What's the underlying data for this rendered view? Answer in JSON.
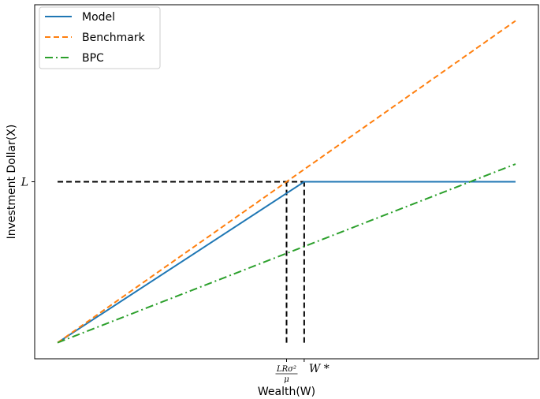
{
  "chart_data": {
    "type": "line",
    "title": "",
    "xlabel": "Wealth(W)",
    "ylabel": "Investment Dollar(X)",
    "xlim": [
      -0.05,
      1.05
    ],
    "ylim": [
      -0.05,
      1.05
    ],
    "grid": false,
    "legend_position": "top-left",
    "x_ticks": [
      {
        "value": 0.5,
        "label_num": "LRσ²",
        "label_den": "μ"
      },
      {
        "value": 0.5385,
        "label": "W *"
      }
    ],
    "y_ticks": [
      {
        "value": 0.5,
        "label": "L"
      }
    ],
    "series": [
      {
        "name": "Model",
        "color": "#1f77b4",
        "dash": "solid",
        "x": [
          0,
          0.5385,
          1.0
        ],
        "y": [
          0,
          0.5,
          0.5
        ]
      },
      {
        "name": "Benchmark",
        "color": "#ff7f0e",
        "dash": "dashed",
        "x": [
          0,
          1.0
        ],
        "y": [
          0,
          1.0
        ]
      },
      {
        "name": "BPC",
        "color": "#2ca02c",
        "dash": "dashdot",
        "x": [
          0,
          1.0
        ],
        "y": [
          0,
          0.555
        ]
      }
    ],
    "annotations": [
      {
        "kind": "hline",
        "y": 0.5,
        "x_from": 0,
        "x_to": 0.5385,
        "color": "#000000"
      },
      {
        "kind": "vline",
        "x": 0.5,
        "y_from": 0,
        "y_to": 0.5,
        "color": "#000000"
      },
      {
        "kind": "vline",
        "x": 0.5385,
        "y_from": 0,
        "y_to": 0.5,
        "color": "#000000"
      }
    ]
  }
}
